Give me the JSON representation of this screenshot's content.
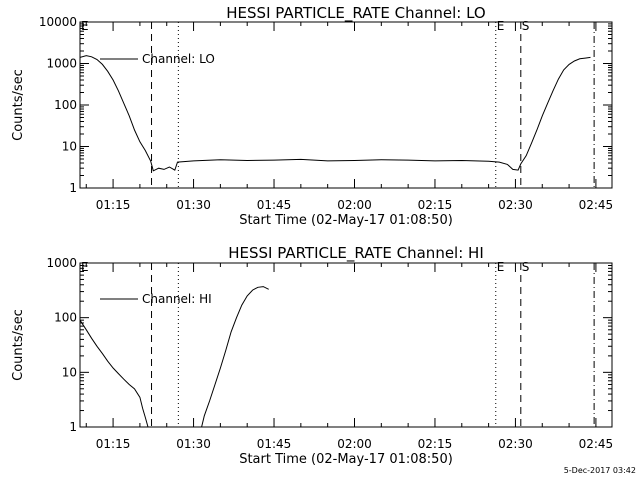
{
  "chart_data": [
    {
      "type": "line",
      "title": "HESSI PARTICLE_RATE Channel: LO",
      "xlabel": "Start Time (02-May-17 01:08:50)",
      "ylabel": "Counts/sec",
      "y_scale": "log",
      "ylim": [
        1,
        10000
      ],
      "y_ticks": [
        "1",
        "10",
        "100",
        "1000",
        "10000"
      ],
      "xlim": [
        "01:08:50",
        "02:48:00"
      ],
      "x_ticks": [
        "01:15",
        "01:30",
        "01:45",
        "02:00",
        "02:15",
        "02:30",
        "02:45"
      ],
      "legend": {
        "entry": "Channel: LO",
        "placement": "top-left"
      },
      "flags": [
        {
          "label": "E",
          "time": "01:08:50"
        },
        {
          "label": "E",
          "time": "02:26:20"
        },
        {
          "label": "S",
          "time": "02:31:00"
        }
      ],
      "markers": [
        {
          "style": "dashed",
          "time": "01:22:10"
        },
        {
          "style": "dotted",
          "time": "01:27:10"
        },
        {
          "style": "dotted",
          "time": "02:26:20"
        },
        {
          "style": "dashed",
          "time": "02:31:00"
        },
        {
          "style": "dash-dot",
          "time": "02:44:40"
        }
      ],
      "series": [
        {
          "name": "Channel: LO",
          "x": [
            "01:08:50",
            "01:10:00",
            "01:11:00",
            "01:12:00",
            "01:13:00",
            "01:14:00",
            "01:15:00",
            "01:16:00",
            "01:17:00",
            "01:18:00",
            "01:19:00",
            "01:20:00",
            "01:21:00",
            "01:22:00",
            "01:22:30",
            "01:23:30",
            "01:24:30",
            "01:25:30",
            "01:26:30",
            "01:27:00",
            "01:30:00",
            "01:35:00",
            "01:40:00",
            "01:45:00",
            "01:50:00",
            "01:55:00",
            "02:00:00",
            "02:05:00",
            "02:10:00",
            "02:15:00",
            "02:20:00",
            "02:25:00",
            "02:27:00",
            "02:28:30",
            "02:29:30",
            "02:30:30",
            "02:31:00",
            "02:32:00",
            "02:33:00",
            "02:34:00",
            "02:35:00",
            "02:36:00",
            "02:37:00",
            "02:38:00",
            "02:39:00",
            "02:40:00",
            "02:41:00",
            "02:42:00",
            "02:43:00",
            "02:44:00"
          ],
          "values": [
            1400,
            1550,
            1450,
            1250,
            950,
            650,
            400,
            220,
            110,
            55,
            25,
            13,
            8,
            4.5,
            2.6,
            3.0,
            2.8,
            3.2,
            2.7,
            4.2,
            4.5,
            4.8,
            4.6,
            4.7,
            4.9,
            4.5,
            4.6,
            4.8,
            4.7,
            4.5,
            4.6,
            4.4,
            4.2,
            3.7,
            2.8,
            2.7,
            3.8,
            6,
            12,
            25,
            55,
            110,
            220,
            420,
            700,
            950,
            1150,
            1300,
            1350,
            1400
          ]
        }
      ]
    },
    {
      "type": "line",
      "title": "HESSI PARTICLE_RATE Channel: HI",
      "xlabel": "Start Time (02-May-17 01:08:50)",
      "ylabel": "Counts/sec",
      "y_scale": "log",
      "ylim": [
        1,
        1000
      ],
      "y_ticks": [
        "1",
        "10",
        "100",
        "1000"
      ],
      "xlim": [
        "01:08:50",
        "02:48:00"
      ],
      "x_ticks": [
        "01:15",
        "01:30",
        "01:45",
        "02:00",
        "02:15",
        "02:30",
        "02:45"
      ],
      "legend": {
        "entry": "Channel: HI",
        "placement": "top-left"
      },
      "flags": [
        {
          "label": "E",
          "time": "01:08:50"
        },
        {
          "label": "E",
          "time": "02:26:20"
        },
        {
          "label": "S",
          "time": "02:31:00"
        }
      ],
      "markers": [
        {
          "style": "dashed",
          "time": "01:22:10"
        },
        {
          "style": "dotted",
          "time": "01:27:10"
        },
        {
          "style": "dotted",
          "time": "02:26:20"
        },
        {
          "style": "dashed",
          "time": "02:31:00"
        },
        {
          "style": "dash-dot",
          "time": "02:44:40"
        }
      ],
      "series": [
        {
          "name": "Channel: HI",
          "x": [
            "01:08:50",
            "01:10:00",
            "01:11:00",
            "01:12:00",
            "01:13:00",
            "01:14:00",
            "01:15:00",
            "01:16:00",
            "01:17:00",
            "01:18:00",
            "01:19:00",
            "01:20:00",
            "01:20:30",
            "01:21:00",
            "01:21:30",
            "01:31:30",
            "01:32:00",
            "01:33:00",
            "01:34:00",
            "01:35:00",
            "01:36:00",
            "01:37:00",
            "01:38:00",
            "01:39:00",
            "01:40:00",
            "01:41:00",
            "01:42:00",
            "01:43:00",
            "01:44:00"
          ],
          "values": [
            90,
            60,
            42,
            30,
            22,
            16,
            12,
            9.5,
            7.5,
            6,
            5,
            3.5,
            2.2,
            1.5,
            1.0,
            1.0,
            1.6,
            3,
            6,
            12,
            25,
            55,
            100,
            170,
            250,
            320,
            360,
            370,
            330
          ]
        }
      ]
    }
  ],
  "footer": {
    "timestamp": "5-Dec-2017 03:42"
  }
}
